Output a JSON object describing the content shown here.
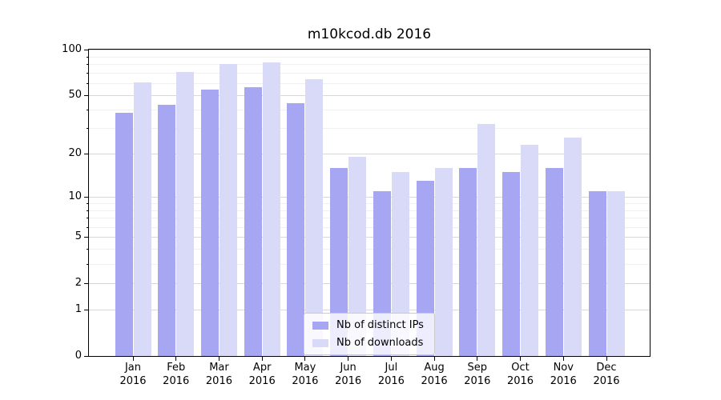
{
  "chart_data": {
    "type": "bar",
    "title": "m10kcod.db 2016",
    "categories": [
      "Jan",
      "Feb",
      "Mar",
      "Apr",
      "May",
      "Jun",
      "Jul",
      "Aug",
      "Sep",
      "Oct",
      "Nov",
      "Dec"
    ],
    "x_tick_second_line": "2016",
    "series": [
      {
        "name": "Nb of distinct IPs",
        "color": "#a6a6f2",
        "values": [
          38,
          43,
          54,
          56,
          44,
          16,
          11,
          13,
          16,
          15,
          16,
          11
        ]
      },
      {
        "name": "Nb of downloads",
        "color": "#d9d9f8",
        "values": [
          61,
          71,
          80,
          82,
          64,
          19,
          15,
          16,
          32,
          23,
          26,
          11
        ]
      }
    ],
    "yscale": "log1p",
    "ylim": [
      0,
      100
    ],
    "yticks_major": [
      0,
      1,
      2,
      5,
      10,
      20,
      50,
      100
    ],
    "yticks_minor": [
      3,
      4,
      6,
      7,
      8,
      9,
      30,
      40,
      60,
      70,
      80,
      90
    ],
    "grid": true,
    "legend_position": "lower center",
    "colors": {
      "grid_major": "#d8d8d8",
      "grid_minor": "#f0f0f0",
      "axis": "#000000",
      "text": "#000000",
      "background": "#ffffff"
    }
  }
}
